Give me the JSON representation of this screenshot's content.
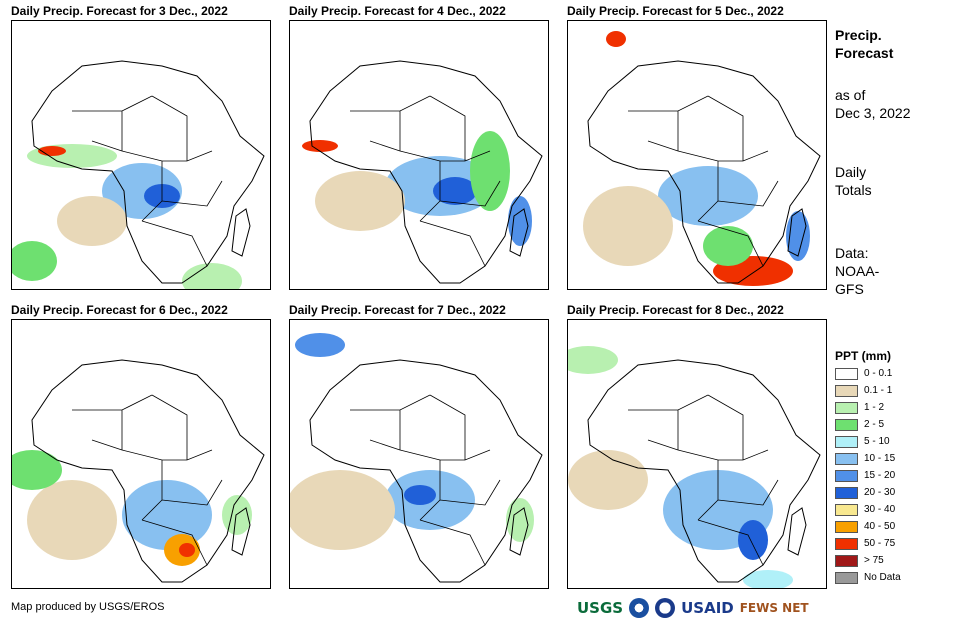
{
  "panels": [
    {
      "title": "Daily Precip. Forecast for 3 Dec., 2022"
    },
    {
      "title": "Daily Precip. Forecast for 4 Dec., 2022"
    },
    {
      "title": "Daily Precip. Forecast for 5 Dec., 2022"
    },
    {
      "title": "Daily Precip. Forecast for 6 Dec., 2022"
    },
    {
      "title": "Daily Precip. Forecast for 7 Dec., 2022"
    },
    {
      "title": "Daily Precip. Forecast for 8 Dec., 2022"
    }
  ],
  "sidebar": {
    "title_line1": "Precip.",
    "title_line2": "Forecast",
    "asof_line1": "as of",
    "asof_line2": "Dec 3, 2022",
    "totals_line1": "Daily",
    "totals_line2": "Totals",
    "data_line1": "Data:",
    "data_line2": "NOAA-",
    "data_line3": "GFS"
  },
  "legend": {
    "title": "PPT (mm)",
    "items": [
      {
        "label": "0 - 0.1",
        "color": "#ffffff"
      },
      {
        "label": "0.1 - 1",
        "color": "#e8d8b8"
      },
      {
        "label": "1 - 2",
        "color": "#b8f0b0"
      },
      {
        "label": "2 - 5",
        "color": "#6ee070"
      },
      {
        "label": "5 - 10",
        "color": "#b0f0f8"
      },
      {
        "label": "10 - 15",
        "color": "#88c0f0"
      },
      {
        "label": "15 - 20",
        "color": "#5090e8"
      },
      {
        "label": "20 - 30",
        "color": "#2060d8"
      },
      {
        "label": "30 - 40",
        "color": "#f8e890"
      },
      {
        "label": "40 - 50",
        "color": "#f8a000"
      },
      {
        "label": "50 - 75",
        "color": "#f03000"
      },
      {
        "label": "> 75",
        "color": "#a01818"
      },
      {
        "label": "No Data",
        "color": "#999999"
      }
    ]
  },
  "footer": {
    "credit": "Map produced by USGS/EROS",
    "logos": [
      "USGS",
      "USAID",
      "FEWS NET"
    ]
  }
}
